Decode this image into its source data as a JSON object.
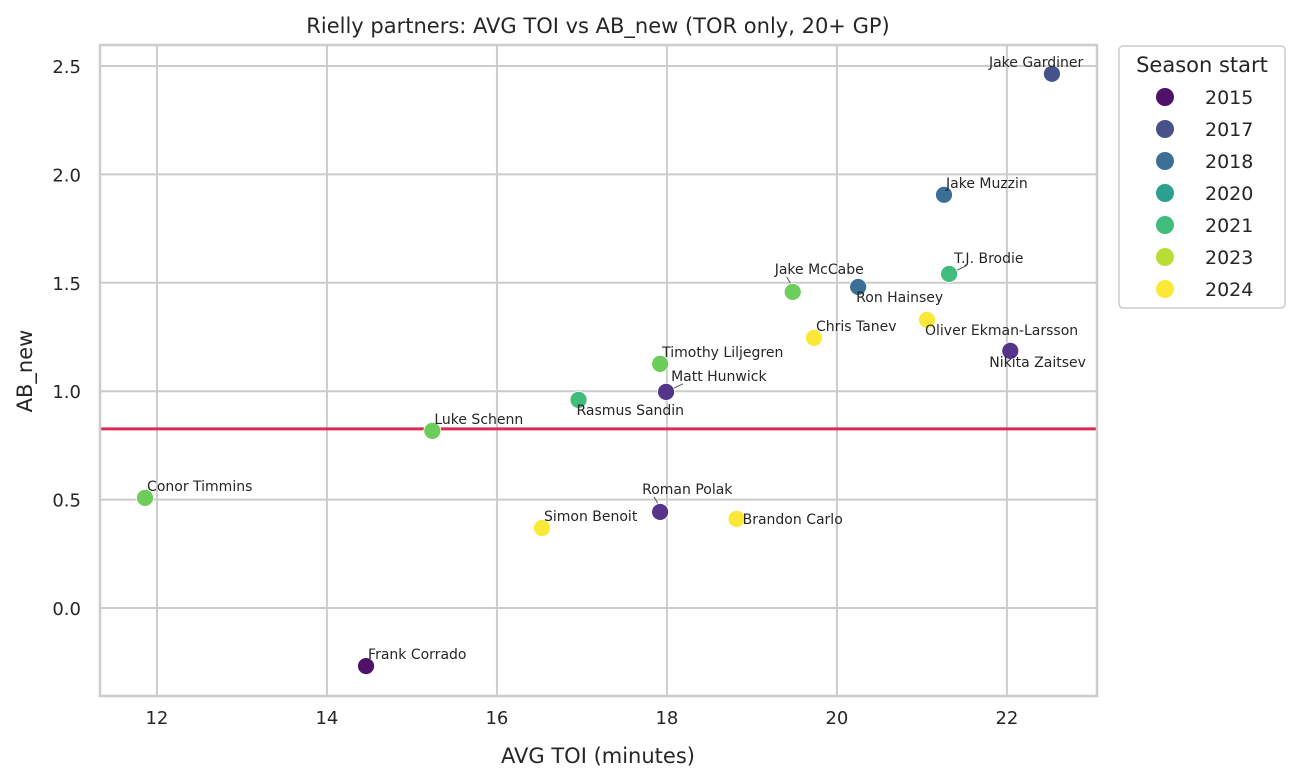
{
  "chart_data": {
    "type": "scatter",
    "title": "Rielly partners: AVG TOI vs AB_new (TOR only, 20+ GP)",
    "xlabel": "AVG TOI (minutes)",
    "ylabel": "AB_new",
    "xlim": [
      11.33,
      23.06
    ],
    "ylim": [
      -0.406,
      2.597
    ],
    "xticks": [
      12,
      14,
      16,
      18,
      20,
      22
    ],
    "xtick_labels": [
      "12",
      "14",
      "16",
      "18",
      "20",
      "22"
    ],
    "yticks": [
      0.0,
      0.5,
      1.0,
      1.5,
      2.0,
      2.5
    ],
    "ytick_labels": [
      "0.0",
      "0.5",
      "1.0",
      "1.5",
      "2.0",
      "2.5"
    ],
    "grid": true,
    "reference_line": {
      "orientation": "horizontal",
      "y": 0.826,
      "color": "#dc2c55"
    },
    "legend": {
      "title": "Season start",
      "placement": "outside-top-right",
      "entries": [
        {
          "label": "2015",
          "color": "#4f1268"
        },
        {
          "label": "2017",
          "color": "#47528a"
        },
        {
          "label": "2018",
          "color": "#3c6f95"
        },
        {
          "label": "2020",
          "color": "#2ba08e"
        },
        {
          "label": "2021",
          "color": "#40bc7c"
        },
        {
          "label": "2023",
          "color": "#b8de35"
        },
        {
          "label": "2024",
          "color": "#fce837"
        }
      ]
    },
    "points": [
      {
        "name": "Jake Gardiner",
        "x": 22.53,
        "y": 2.464,
        "color": "#47528a",
        "label_pos": "above-left"
      },
      {
        "name": "Jake Muzzin",
        "x": 21.26,
        "y": 1.906,
        "color": "#3c6f95",
        "label_pos": "above-right"
      },
      {
        "name": "T.J. Brodie",
        "x": 21.32,
        "y": 1.541,
        "color": "#40bc7c",
        "label_pos": "above-right-leader"
      },
      {
        "name": "Jake McCabe",
        "x": 19.48,
        "y": 1.458,
        "color": "#6ccd5a",
        "label_pos": "above-leader"
      },
      {
        "name": "Ron Hainsey",
        "x": 20.25,
        "y": 1.481,
        "color": "#3c6f95",
        "label_pos": "below-right"
      },
      {
        "name": "Oliver Ekman-Larsson",
        "x": 21.06,
        "y": 1.329,
        "color": "#fce837",
        "label_pos": "below-right"
      },
      {
        "name": "Chris Tanev",
        "x": 19.73,
        "y": 1.246,
        "color": "#fce837",
        "label_pos": "above-right"
      },
      {
        "name": "Nikita Zaitsev",
        "x": 22.04,
        "y": 1.186,
        "color": "#55358a",
        "label_pos": "below-left"
      },
      {
        "name": "Timothy Liljegren",
        "x": 17.92,
        "y": 1.126,
        "color": "#6ccd5a",
        "label_pos": "above-right"
      },
      {
        "name": "Matt Hunwick",
        "x": 17.99,
        "y": 0.997,
        "color": "#55358a",
        "label_pos": "above-right-leader"
      },
      {
        "name": "Rasmus Sandin",
        "x": 16.96,
        "y": 0.96,
        "color": "#40bc7c",
        "label_pos": "below-right"
      },
      {
        "name": "Luke Schenn",
        "x": 15.24,
        "y": 0.817,
        "color": "#6ccd5a",
        "label_pos": "above-right"
      },
      {
        "name": "Conor Timmins",
        "x": 11.86,
        "y": 0.508,
        "color": "#6ccd5a",
        "label_pos": "above-right"
      },
      {
        "name": "Roman Polak",
        "x": 17.92,
        "y": 0.443,
        "color": "#55358a",
        "label_pos": "above-leader"
      },
      {
        "name": "Brandon Carlo",
        "x": 18.82,
        "y": 0.411,
        "color": "#fce837",
        "label_pos": "right"
      },
      {
        "name": "Simon Benoit",
        "x": 16.53,
        "y": 0.369,
        "color": "#fce837",
        "label_pos": "above-right"
      },
      {
        "name": "Frank Corrado",
        "x": 14.46,
        "y": -0.268,
        "color": "#4f1268",
        "label_pos": "above-right"
      }
    ]
  }
}
